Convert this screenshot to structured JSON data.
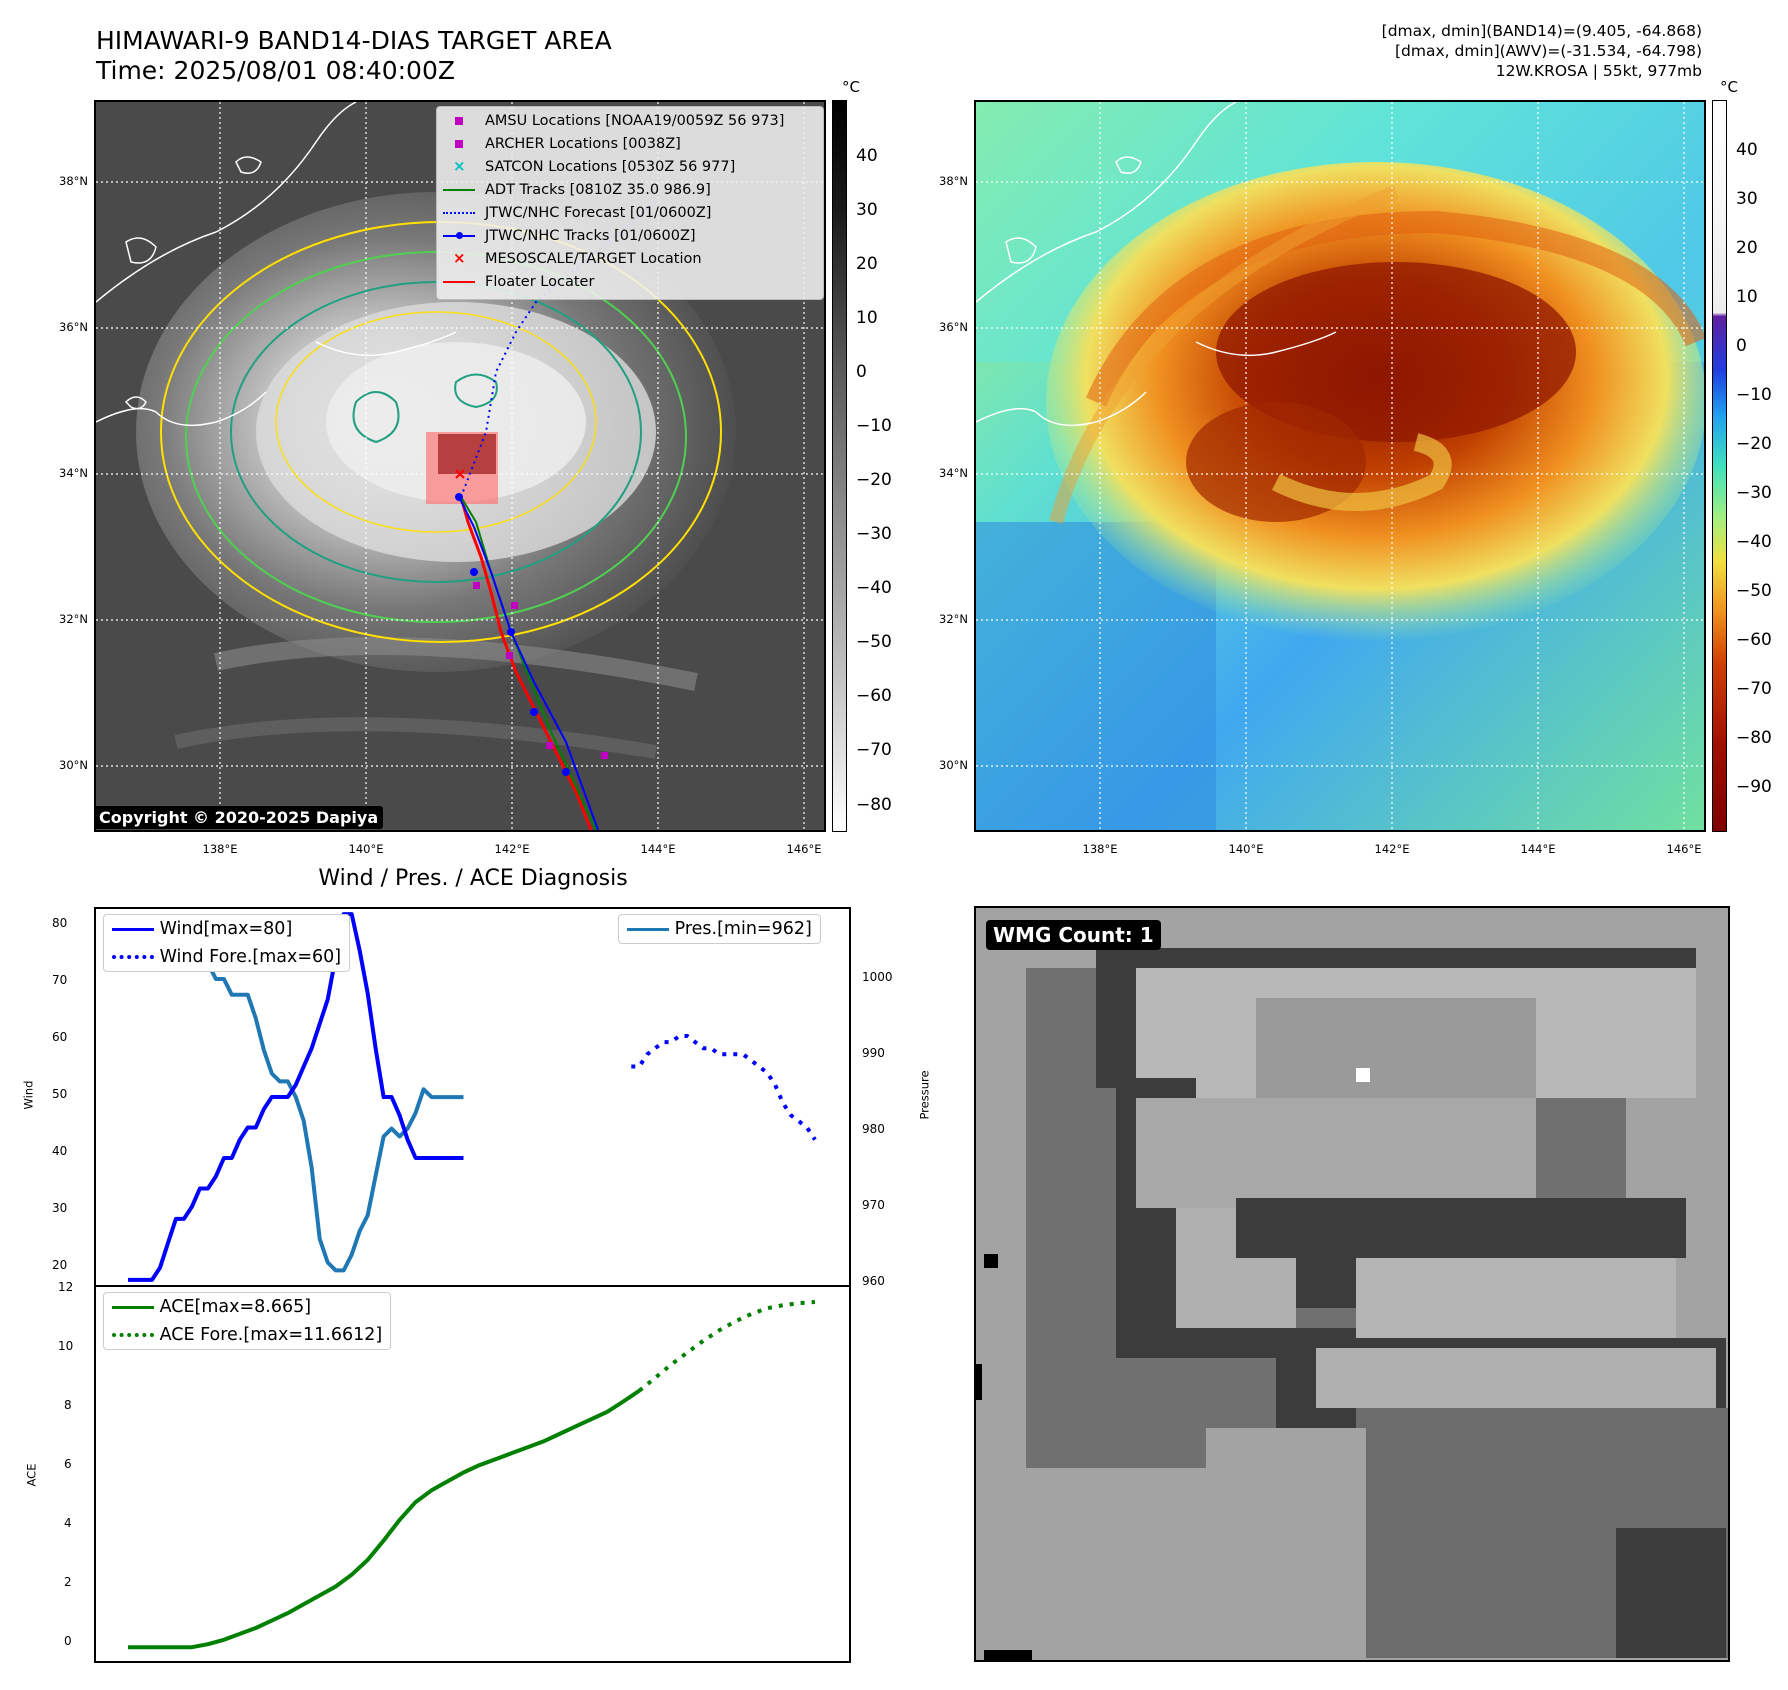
{
  "header": {
    "title_line1": "HIMAWARI-9 BAND14-DIAS TARGET AREA",
    "title_line2": "Time: 2025/08/01 08:40:00Z",
    "info_line1": "[dmax, dmin](BAND14)=(9.405, -64.868)",
    "info_line2": "[dmax, dmin](AWV)=(-31.534, -64.798)",
    "info_line3": "12W.KROSA | 55kt, 977mb"
  },
  "map_axes": {
    "lat_labels": [
      "38°N",
      "36°N",
      "34°N",
      "32°N",
      "30°N"
    ],
    "lon_labels": [
      "138°E",
      "140°E",
      "142°E",
      "144°E",
      "146°E"
    ]
  },
  "colorbar_left": {
    "unit": "°C",
    "ticks": [
      "40",
      "30",
      "20",
      "10",
      "0",
      "−10",
      "−20",
      "−30",
      "−40",
      "−50",
      "−60",
      "−70",
      "−80"
    ]
  },
  "colorbar_right": {
    "unit": "°C",
    "ticks": [
      "40",
      "30",
      "20",
      "10",
      "0",
      "−10",
      "−20",
      "−30",
      "−40",
      "−50",
      "−60",
      "−70",
      "−80",
      "−90"
    ]
  },
  "map_legend": [
    {
      "label": "AMSU Locations [NOAA19/0059Z 56 973]",
      "symbol": "square",
      "color": "#c000c0"
    },
    {
      "label": "ARCHER Locations [0038Z]",
      "symbol": "square",
      "color": "#c000c0"
    },
    {
      "label": "SATCON Locations [0530Z 56 977]",
      "symbol": "x",
      "color": "#00c0c0"
    },
    {
      "label": "ADT Tracks [0810Z 35.0 986.9]",
      "symbol": "line",
      "color": "#008000"
    },
    {
      "label": "JTWC/NHC Forecast [01/0600Z]",
      "symbol": "dotted",
      "color": "#0000ff"
    },
    {
      "label": "JTWC/NHC Tracks [01/0600Z]",
      "symbol": "line-dot",
      "color": "#0000ff"
    },
    {
      "label": "MESOSCALE/TARGET Location",
      "symbol": "x",
      "color": "#ff0000"
    },
    {
      "label": "Floater Locater",
      "symbol": "line",
      "color": "#ff0000"
    }
  ],
  "copyright": "Copyright © 2020-2025 Dapiya",
  "wmg_label": "WMG Count: 1",
  "chart_data": [
    {
      "type": "line",
      "title": "Wind / Pres. / ACE Diagnosis",
      "ylabel_left": "Wind",
      "ylabel_right": "Pressure",
      "y_left_ticks": [
        "80",
        "70",
        "60",
        "50",
        "40",
        "30",
        "20"
      ],
      "y_right_ticks": [
        "1000",
        "990",
        "980",
        "970",
        "960"
      ],
      "ylim_left": [
        19,
        81
      ],
      "ylim_right": [
        960,
        1008
      ],
      "legend_left": [
        "Wind[max=80]",
        "Wind Fore.[max=60]"
      ],
      "legend_right": [
        "Pres.[min=962]"
      ],
      "series": [
        {
          "name": "Wind[max=80]",
          "color": "#0000ff",
          "style": "solid",
          "x": [
            0,
            1,
            2,
            3,
            4,
            5,
            6,
            7,
            8,
            9,
            10,
            11,
            12,
            13,
            14,
            15,
            16,
            17,
            18,
            19,
            20,
            21,
            22,
            23,
            24,
            25,
            26,
            27,
            28,
            29,
            30,
            31,
            32,
            33,
            34,
            35,
            36,
            37,
            38,
            39,
            40,
            41,
            42
          ],
          "y": [
            20,
            20,
            20,
            20,
            22,
            26,
            30,
            30,
            32,
            35,
            35,
            37,
            40,
            40,
            43,
            45,
            45,
            48,
            50,
            50,
            50,
            52,
            55,
            58,
            62,
            66,
            73,
            80,
            80,
            74,
            67,
            58,
            50,
            50,
            47,
            43,
            40,
            40,
            40,
            40,
            40,
            40,
            40
          ]
        },
        {
          "name": "Wind Fore.[max=60]",
          "color": "#0000ff",
          "style": "dotted",
          "x": [
            63,
            64,
            65,
            66,
            67,
            68,
            69,
            70,
            71,
            72,
            73,
            74,
            75,
            76,
            77,
            78,
            79,
            80,
            81,
            82,
            83,
            84,
            85,
            86
          ],
          "y": [
            55,
            55,
            57,
            58,
            59,
            59,
            60,
            60,
            59,
            58,
            58,
            57,
            57,
            57,
            57,
            56,
            55,
            54,
            52,
            49,
            47,
            46,
            45,
            43
          ]
        },
        {
          "name": "Pres.[min=962]",
          "color": "#1f77b4",
          "style": "solid",
          "axis": "right",
          "x": [
            0,
            1,
            2,
            3,
            4,
            5,
            6,
            7,
            8,
            9,
            10,
            11,
            12,
            13,
            14,
            15,
            16,
            17,
            18,
            19,
            20,
            21,
            22,
            23,
            24,
            25,
            26,
            27,
            28,
            29,
            30,
            31,
            32,
            33,
            34,
            35,
            36,
            37,
            38,
            39,
            40,
            41,
            42
          ],
          "y": [
            1007,
            1007,
            1007,
            1007,
            1007,
            1005,
            1005,
            1004,
            1004,
            1002,
            1002,
            1000,
            1000,
            998,
            998,
            998,
            995,
            991,
            988,
            987,
            987,
            985,
            982,
            976,
            967,
            964,
            963,
            963,
            965,
            968,
            970,
            975,
            980,
            981,
            980,
            981,
            983,
            986,
            985,
            985,
            985,
            985,
            985
          ]
        }
      ]
    },
    {
      "type": "line",
      "ylabel": "ACE",
      "y_ticks": [
        "12",
        "10",
        "8",
        "6",
        "4",
        "2",
        "0"
      ],
      "ylim": [
        -0.5,
        12.2
      ],
      "legend": [
        "ACE[max=8.665]",
        "ACE Fore.[max=11.6612]"
      ],
      "series": [
        {
          "name": "ACE[max=8.665]",
          "color": "#008000",
          "style": "solid",
          "x": [
            0,
            2,
            4,
            6,
            8,
            10,
            12,
            14,
            16,
            18,
            20,
            22,
            24,
            26,
            28,
            30,
            32,
            34,
            36,
            38,
            40,
            42,
            44,
            46,
            48,
            50,
            52,
            54,
            56,
            58,
            60,
            62,
            64
          ],
          "y": [
            0,
            0,
            0,
            0,
            0,
            0.1,
            0.25,
            0.45,
            0.65,
            0.9,
            1.15,
            1.45,
            1.75,
            2.05,
            2.45,
            2.95,
            3.6,
            4.3,
            4.9,
            5.3,
            5.6,
            5.9,
            6.15,
            6.35,
            6.55,
            6.75,
            6.95,
            7.2,
            7.45,
            7.7,
            7.95,
            8.3,
            8.665
          ]
        },
        {
          "name": "ACE Fore.[max=11.6612]",
          "color": "#008000",
          "style": "dotted",
          "x": [
            64,
            66,
            68,
            70,
            72,
            74,
            76,
            78,
            80,
            82,
            84,
            86
          ],
          "y": [
            8.665,
            9.1,
            9.55,
            9.95,
            10.35,
            10.7,
            11.0,
            11.25,
            11.45,
            11.55,
            11.62,
            11.66
          ]
        }
      ]
    }
  ]
}
